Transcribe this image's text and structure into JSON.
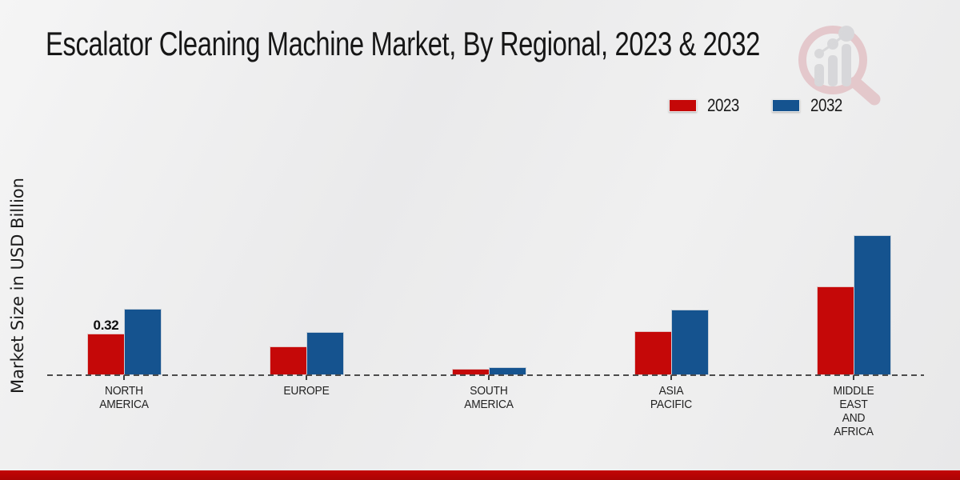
{
  "title": "Escalator Cleaning Machine Market, By Regional, 2023 & 2032",
  "y_axis_label": "Market Size in USD Billion",
  "legend": [
    {
      "label": "2023",
      "color": "#c50808"
    },
    {
      "label": "2032",
      "color": "#15538f"
    }
  ],
  "colors": {
    "series_2023": "#c50808",
    "series_2032": "#15538f",
    "footer_strip": "#b50505",
    "baseline": "#4b4b4b",
    "background": "#ececec"
  },
  "watermark_icon": "market-research-future-logo",
  "chart_data": {
    "type": "bar",
    "title": "Escalator Cleaning Machine Market, By Regional, 2023 & 2032",
    "ylabel": "Market Size in USD Billion",
    "xlabel": "",
    "categories": [
      "NORTH AMERICA",
      "EUROPE",
      "SOUTH AMERICA",
      "ASIA PACIFIC",
      "MIDDLE EAST AND AFRICA"
    ],
    "category_lines": [
      [
        "NORTH",
        "AMERICA"
      ],
      [
        "EUROPE"
      ],
      [
        "SOUTH",
        "AMERICA"
      ],
      [
        "ASIA",
        "PACIFIC"
      ],
      [
        "MIDDLE",
        "EAST",
        "AND",
        "AFRICA"
      ]
    ],
    "series": [
      {
        "name": "2023",
        "color": "#c50808",
        "values": [
          0.32,
          0.22,
          0.04,
          0.34,
          0.7
        ]
      },
      {
        "name": "2032",
        "color": "#15538f",
        "values": [
          0.52,
          0.33,
          0.05,
          0.51,
          1.11
        ]
      }
    ],
    "data_labels": [
      {
        "series": "2023",
        "category": "NORTH AMERICA",
        "text": "0.32"
      }
    ],
    "ylim": [
      0,
      1.2
    ],
    "grid": false,
    "baseline_style": "dashed",
    "legend_position": "top-right"
  }
}
